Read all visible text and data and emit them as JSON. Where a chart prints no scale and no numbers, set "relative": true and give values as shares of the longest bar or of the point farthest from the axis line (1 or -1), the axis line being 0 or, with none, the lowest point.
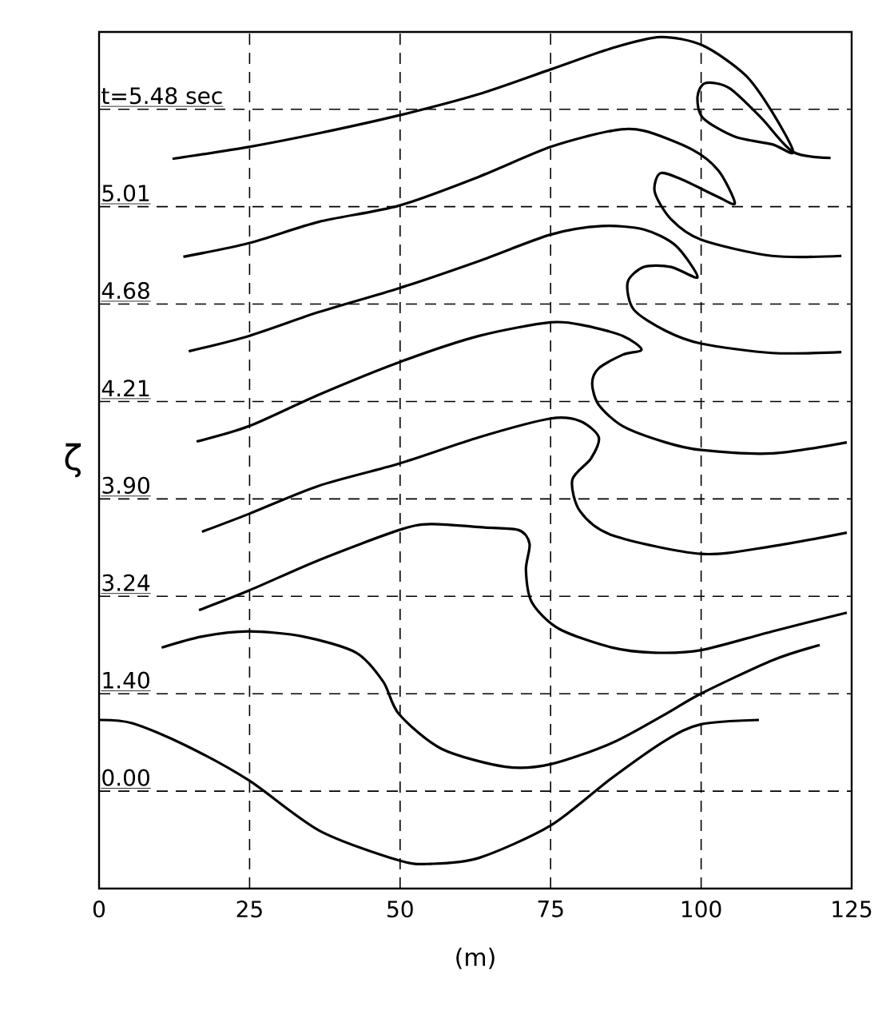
{
  "chart_data": {
    "type": "line",
    "relative": true,
    "xlabel": "(m)",
    "ylabel": "ζ",
    "xlim": [
      0,
      125
    ],
    "xticks": [
      0,
      25,
      50,
      75,
      100,
      125
    ],
    "grid": true,
    "marker": "none",
    "line_style": "solid",
    "series": [
      {
        "name": "t=5.48 sec",
        "color": "#000000",
        "x": [
          12.2,
          24.9,
          36.5,
          49.8,
          63.1,
          75.0,
          85.2,
          93.2,
          100.3,
          107.4,
          111.8,
          115.3,
          111.8,
          105.6,
          100.3,
          99.4,
          100.7,
          104.7,
          110.0,
          115.3,
          121.5
        ],
        "values": [
          0.857,
          0.871,
          0.887,
          0.908,
          0.933,
          0.962,
          0.987,
          1.0,
          0.99,
          0.955,
          0.912,
          0.865,
          0.874,
          0.883,
          0.905,
          0.93,
          0.946,
          0.94,
          0.905,
          0.865,
          0.858
        ]
      },
      {
        "name": "5.01",
        "color": "#000000",
        "x": [
          14.0,
          24.9,
          36.5,
          49.8,
          63.1,
          75.0,
          85.2,
          90.5,
          98.5,
          102.9,
          105.6,
          102.9,
          96.7,
          93.2,
          92.3,
          95.0,
          100,
          111.8,
          123.3
        ],
        "values": [
          0.742,
          0.758,
          0.783,
          0.802,
          0.836,
          0.871,
          0.89,
          0.89,
          0.868,
          0.843,
          0.805,
          0.812,
          0.833,
          0.84,
          0.818,
          0.786,
          0.762,
          0.743,
          0.743
        ]
      },
      {
        "name": "4.68",
        "color": "#000000",
        "x": [
          14.9,
          24.9,
          36.5,
          49.8,
          63.1,
          75.0,
          83.5,
          90.5,
          95.8,
          99.4,
          95.0,
          90.5,
          87.8,
          88.8,
          94.1,
          100,
          111.8,
          123.3
        ],
        "values": [
          0.631,
          0.649,
          0.677,
          0.705,
          0.737,
          0.768,
          0.778,
          0.774,
          0.755,
          0.718,
          0.73,
          0.73,
          0.712,
          0.68,
          0.655,
          0.64,
          0.629,
          0.63
        ]
      },
      {
        "name": "4.21",
        "color": "#000000",
        "x": [
          16.2,
          24.9,
          36.5,
          49.8,
          63.1,
          75.0,
          80.8,
          87.0,
          90.1,
          87.0,
          83.0,
          81.9,
          83.0,
          87.0,
          94.1,
          100,
          111.8,
          124.2
        ],
        "values": [
          0.525,
          0.543,
          0.58,
          0.618,
          0.649,
          0.665,
          0.661,
          0.649,
          0.633,
          0.627,
          0.611,
          0.593,
          0.568,
          0.543,
          0.524,
          0.515,
          0.511,
          0.524
        ]
      },
      {
        "name": "3.90",
        "color": "#000000",
        "x": [
          17.1,
          24.9,
          36.5,
          49.8,
          63.1,
          75.0,
          79.9,
          83.0,
          81.7,
          78.6,
          79.9,
          85.2,
          100,
          111.8,
          124.2
        ],
        "values": [
          0.419,
          0.44,
          0.473,
          0.499,
          0.53,
          0.552,
          0.549,
          0.53,
          0.505,
          0.48,
          0.443,
          0.415,
          0.393,
          0.402,
          0.418
        ]
      },
      {
        "name": "3.24",
        "color": "#000000",
        "x": [
          16.6,
          24.9,
          36.6,
          49.8,
          55.1,
          64.0,
          69.7,
          71.5,
          70.9,
          71.9,
          76.4,
          85.2,
          92.3,
          100,
          111.8,
          124.2
        ],
        "values": [
          0.327,
          0.35,
          0.386,
          0.421,
          0.428,
          0.424,
          0.421,
          0.405,
          0.374,
          0.336,
          0.305,
          0.283,
          0.277,
          0.28,
          0.302,
          0.324
        ]
      },
      {
        "name": "1.40",
        "color": "#000000",
        "x": [
          10.4,
          17.1,
          24.9,
          33.9,
          42.7,
          47.2,
          49.8,
          56.9,
          67.5,
          75.0,
          85.2,
          94.1,
          100,
          111.8,
          119.7
        ],
        "values": [
          0.283,
          0.296,
          0.302,
          0.296,
          0.277,
          0.243,
          0.205,
          0.164,
          0.143,
          0.146,
          0.171,
          0.205,
          0.229,
          0.268,
          0.286
        ]
      },
      {
        "name": "0.00",
        "color": "#000000",
        "x": [
          0,
          5.6,
          14.4,
          24.9,
          36.6,
          49.8,
          55.1,
          63.1,
          75.0,
          85.2,
          94.1,
          100,
          109.6
        ],
        "values": [
          0.198,
          0.194,
          0.168,
          0.127,
          0.068,
          0.033,
          0.029,
          0.036,
          0.074,
          0.13,
          0.174,
          0.193,
          0.198
        ]
      }
    ]
  }
}
